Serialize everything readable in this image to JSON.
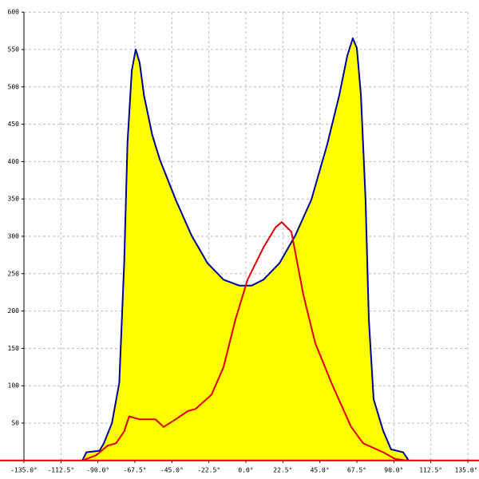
{
  "chart_data": {
    "type": "line",
    "xlim": [
      -135,
      135
    ],
    "xticks": [
      {
        "value": -135,
        "label": "-135.0°"
      },
      {
        "value": -112.5,
        "label": "-112.5°"
      },
      {
        "value": -90,
        "label": "-90.0°"
      },
      {
        "value": -67.5,
        "label": "-67.5°"
      },
      {
        "value": -45,
        "label": "-45.0°"
      },
      {
        "value": -22.5,
        "label": "-22.5°"
      },
      {
        "value": 0,
        "label": "0.0°"
      },
      {
        "value": 22.5,
        "label": "22.5°"
      },
      {
        "value": 45,
        "label": "45.0°"
      },
      {
        "value": 67.5,
        "label": "67.5°"
      },
      {
        "value": 90,
        "label": "90.0°"
      },
      {
        "value": 112.5,
        "label": "112.5°"
      },
      {
        "value": 135,
        "label": "135.0°"
      }
    ],
    "ylim": [
      0,
      600
    ],
    "yticks": [
      50,
      100,
      150,
      200,
      250,
      300,
      350,
      400,
      450,
      500,
      550,
      600
    ],
    "grid": true,
    "series": [
      {
        "color": "#000099",
        "fill": "#ffff00",
        "x": [
          -99.5,
          -97,
          -89,
          -86.4,
          -81.5,
          -77,
          -74,
          -72,
          -69.4,
          -67,
          -64.6,
          -62,
          -57,
          -52.4,
          -42.7,
          -33,
          -23.3,
          -13.6,
          -3.9,
          3.4,
          10.7,
          20.4,
          30,
          39.8,
          49.5,
          56.8,
          61.7,
          65,
          67.5,
          70,
          72.8,
          74.8,
          77.7,
          83.5,
          88.3,
          95.6,
          99
        ],
        "values": [
          0,
          11,
          13,
          23,
          50,
          104,
          265,
          425,
          522,
          550,
          532,
          489,
          436,
          403,
          349,
          301,
          264,
          242,
          234,
          234,
          242,
          264,
          301,
          349,
          423,
          489,
          542,
          565,
          552,
          489,
          349,
          189,
          82,
          40,
          15,
          11,
          0
        ]
      },
      {
        "color": "#dd0000",
        "x": [
          -99.5,
          -91,
          -84,
          -79,
          -74,
          -71,
          -64.6,
          -55,
          -50,
          -42.7,
          -35.4,
          -30.6,
          -20.9,
          -13.6,
          -6.3,
          1,
          10.7,
          18,
          21.8,
          27.7,
          35,
          42.2,
          52,
          64,
          71.4,
          83.5,
          90.8,
          98
        ],
        "values": [
          0,
          7,
          20,
          23,
          39,
          59,
          55,
          55,
          45,
          55,
          66,
          69,
          88,
          125,
          189,
          242,
          285,
          312,
          319,
          306,
          221,
          157,
          104,
          45,
          23,
          11,
          2,
          0
        ]
      }
    ]
  }
}
